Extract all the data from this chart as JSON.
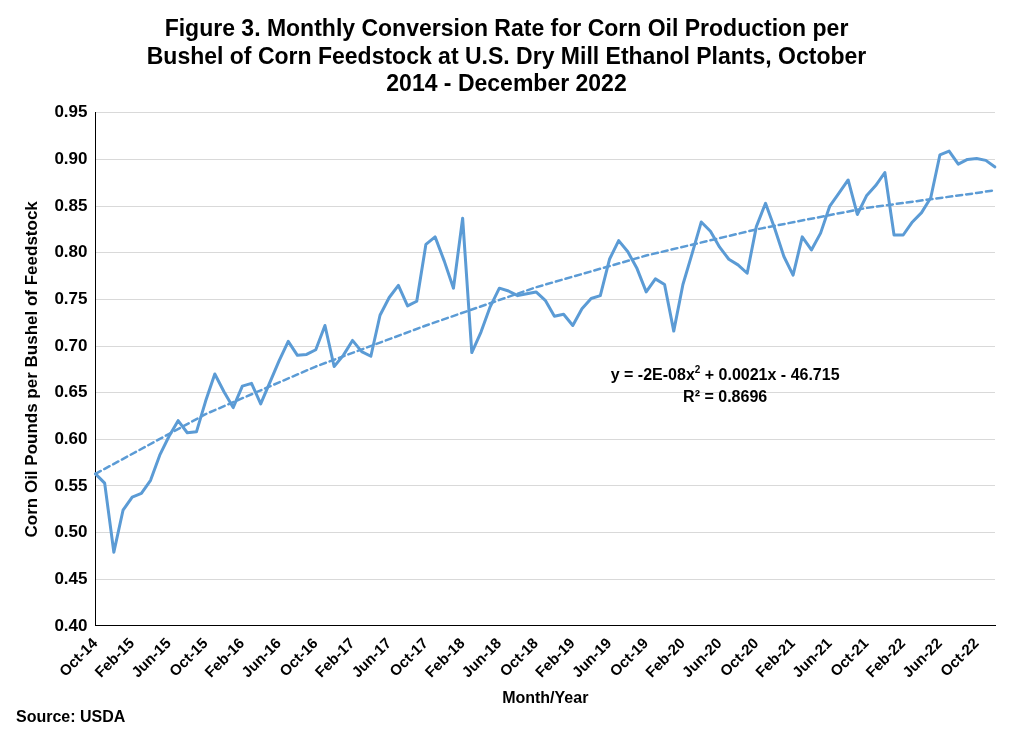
{
  "chart_data": {
    "type": "line",
    "title": "Figure 3. Monthly Conversion Rate for Corn Oil Production per Bushel of Corn Feedstock at U.S. Dry Mill Ethanol Plants, October 2014 - December 2022",
    "xlabel": "Month/Year",
    "ylabel": "Corn Oil Pounds per Bushel of Feedstock",
    "categories": [
      "Oct-14",
      null,
      null,
      null,
      "Feb-15",
      null,
      null,
      null,
      "Jun-15",
      null,
      null,
      null,
      "Oct-15",
      null,
      null,
      null,
      "Feb-16",
      null,
      null,
      null,
      "Jun-16",
      null,
      null,
      null,
      "Oct-16",
      null,
      null,
      null,
      "Feb-17",
      null,
      null,
      null,
      "Jun-17",
      null,
      null,
      null,
      "Oct-17",
      null,
      null,
      null,
      "Feb-18",
      null,
      null,
      null,
      "Jun-18",
      null,
      null,
      null,
      "Oct-18",
      null,
      null,
      null,
      "Feb-19",
      null,
      null,
      null,
      "Jun-19",
      null,
      null,
      null,
      "Oct-19",
      null,
      null,
      null,
      "Feb-20",
      null,
      null,
      null,
      "Jun-20",
      null,
      null,
      null,
      "Oct-20",
      null,
      null,
      null,
      "Feb-21",
      null,
      null,
      null,
      "Jun-21",
      null,
      null,
      null,
      "Oct-21",
      null,
      null,
      null,
      "Feb-22",
      null,
      null,
      null,
      "Jun-22",
      null,
      null,
      null,
      "Oct-22",
      null,
      null
    ],
    "series": [
      {
        "type": "line",
        "color": "#5b9bd5",
        "line_style": "solid",
        "values": [
          0.563,
          0.553,
          0.479,
          0.524,
          0.538,
          0.542,
          0.556,
          0.583,
          0.603,
          0.62,
          0.607,
          0.608,
          0.641,
          0.67,
          0.651,
          0.634,
          0.657,
          0.66,
          0.638,
          0.661,
          0.684,
          0.705,
          0.69,
          0.691,
          0.696,
          0.722,
          0.678,
          0.69,
          0.706,
          0.694,
          0.689,
          0.733,
          0.752,
          0.765,
          0.743,
          0.748,
          0.809,
          0.817,
          0.791,
          0.762,
          0.837,
          0.693,
          0.715,
          0.742,
          0.762,
          0.759,
          0.754,
          0.756,
          0.758,
          0.749,
          0.732,
          0.734,
          0.722,
          0.74,
          0.751,
          0.754,
          0.793,
          0.813,
          0.801,
          0.783,
          0.758,
          0.772,
          0.766,
          0.716,
          0.766,
          0.799,
          0.833,
          0.823,
          0.806,
          0.793,
          0.787,
          0.778,
          0.828,
          0.853,
          0.826,
          0.796,
          0.776,
          0.817,
          0.803,
          0.821,
          0.85,
          0.864,
          0.878,
          0.841,
          0.861,
          0.872,
          0.886,
          0.819,
          0.819,
          0.833,
          0.843,
          0.859,
          0.905,
          0.909,
          0.895,
          0.9,
          0.901,
          0.899,
          0.892
        ]
      },
      {
        "type": "line",
        "color": "#5b9bd5",
        "line_style": "dashed",
        "values": [
          0.563,
          null,
          null,
          null,
          null,
          null,
          null,
          null,
          null,
          null,
          null,
          null,
          0.627,
          null,
          null,
          null,
          null,
          null,
          null,
          null,
          null,
          null,
          null,
          null,
          0.678,
          null,
          null,
          null,
          null,
          null,
          null,
          null,
          null,
          null,
          null,
          null,
          0.722,
          null,
          null,
          null,
          null,
          null,
          null,
          null,
          null,
          null,
          null,
          null,
          0.763,
          null,
          null,
          null,
          null,
          null,
          null,
          null,
          null,
          null,
          null,
          null,
          0.797,
          null,
          null,
          null,
          null,
          null,
          null,
          null,
          null,
          null,
          null,
          null,
          0.825,
          null,
          null,
          null,
          null,
          null,
          null,
          null,
          null,
          null,
          null,
          null,
          0.848,
          null,
          null,
          null,
          null,
          null,
          null,
          null,
          null,
          null,
          null,
          null,
          0.864,
          null,
          0.867
        ]
      }
    ],
    "ylim": [
      0.4,
      0.95
    ],
    "yticks": [
      {
        "value": 0.4,
        "label": "0.40"
      },
      {
        "value": 0.45,
        "label": "0.45"
      },
      {
        "value": 0.5,
        "label": "0.50"
      },
      {
        "value": 0.55,
        "label": "0.55"
      },
      {
        "value": 0.6,
        "label": "0.60"
      },
      {
        "value": 0.65,
        "label": "0.65"
      },
      {
        "value": 0.7,
        "label": "0.70"
      },
      {
        "value": 0.75,
        "label": "0.75"
      },
      {
        "value": 0.8,
        "label": "0.80"
      },
      {
        "value": 0.85,
        "label": "0.85"
      },
      {
        "value": 0.9,
        "label": "0.90"
      },
      {
        "value": 0.95,
        "label": "0.95"
      }
    ],
    "grid": "y",
    "legend": false,
    "marker": "none",
    "annotations": [
      "y = -2E-08x$^{2}$ + 0.0021x - 46.715",
      "R² = 0.8696",
      "Source: USDA"
    ]
  }
}
